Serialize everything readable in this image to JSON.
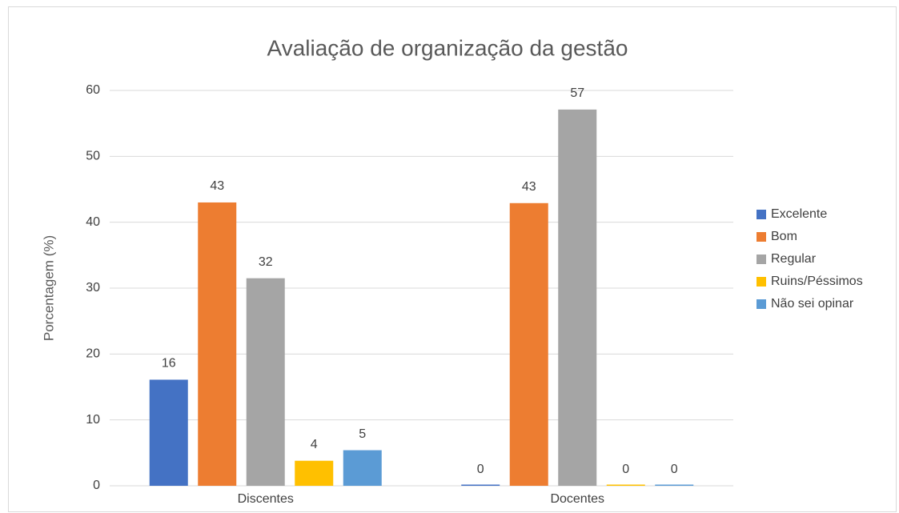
{
  "chart_data": {
    "type": "bar",
    "title": "Avaliação de organização da gestão",
    "y_label": "Porcentagem (%)",
    "categories": [
      "Discentes",
      "Docentes"
    ],
    "series": [
      {
        "name": "Excelente",
        "color": "#4472c4",
        "values": [
          16.1,
          0
        ],
        "value_labels": [
          "16",
          "0"
        ]
      },
      {
        "name": "Bom",
        "color": "#ed7d31",
        "values": [
          43,
          42.9
        ],
        "value_labels": [
          "43",
          "43"
        ]
      },
      {
        "name": "Regular",
        "color": "#a5a5a5",
        "values": [
          31.5,
          57.1
        ],
        "value_labels": [
          "32",
          "57"
        ]
      },
      {
        "name": "Ruins/Péssimos",
        "color": "#ffc000",
        "values": [
          3.8,
          0
        ],
        "value_labels": [
          "4",
          "0"
        ]
      },
      {
        "name": "Não sei opinar",
        "color": "#5b9bd5",
        "values": [
          5.4,
          0
        ],
        "value_labels": [
          "5",
          "0"
        ]
      }
    ],
    "ylim": [
      0,
      60
    ],
    "yticks": [
      0,
      10,
      20,
      30,
      40,
      50,
      60
    ],
    "grid": true,
    "legend": "right"
  }
}
